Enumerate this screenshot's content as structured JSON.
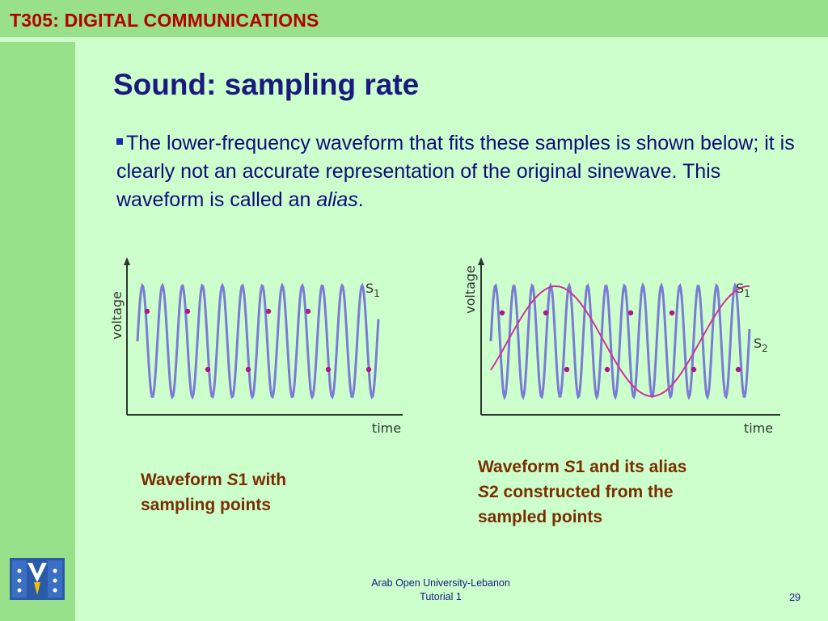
{
  "header": {
    "course_title": "T305: DIGITAL COMMUNICATIONS"
  },
  "slide": {
    "heading": "Sound: sampling rate",
    "body_before": "The lower-frequency waveform that fits these samples is shown below; it is clearly not an accurate representation of the original sinewave. This waveform is called an ",
    "body_term": "alias",
    "body_after": "."
  },
  "diagrams": {
    "left": {
      "y_axis_label": "voltage",
      "x_axis_label": "time",
      "series_label_main": "S",
      "series_label_sub": "1",
      "caption": {
        "line1_pre": "Waveform ",
        "line1_sym": "S",
        "line1_post": "1 with",
        "line2": "sampling points"
      }
    },
    "right": {
      "y_axis_label": "voltage",
      "x_axis_label": "time",
      "series1_label_main": "S",
      "series1_label_sub": "1",
      "series2_label_main": "S",
      "series2_label_sub": "2",
      "caption": {
        "line1_pre": "Waveform ",
        "line1_sym": "S",
        "line1_post": "1 and its alias",
        "line2_sym": "S",
        "line2_post": "2 constructed from the",
        "line3": "sampled points"
      }
    }
  },
  "footer": {
    "line1": "Arab Open University-Lebanon",
    "line2": "Tutorial 1",
    "page_number": "29"
  },
  "colors": {
    "header_bar": "#99e08a",
    "background": "#ccffcc",
    "course_title": "#b30000",
    "heading": "#1a1a7e",
    "wave_s1": "#7b7bd6",
    "wave_s2": "#cc3399",
    "sample_point": "#aa1a88",
    "caption": "#7a2e00"
  }
}
